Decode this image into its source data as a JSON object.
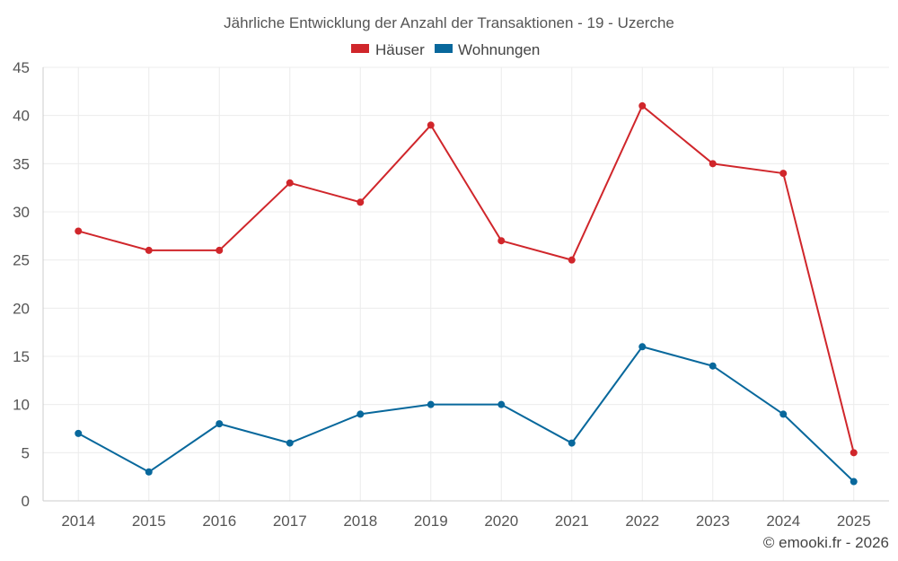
{
  "chart_data": {
    "type": "line",
    "title": "Jährliche Entwicklung der Anzahl der Transaktionen - 19 - Uzerche",
    "xlabel": "",
    "ylabel": "",
    "categories": [
      "2014",
      "2015",
      "2016",
      "2017",
      "2018",
      "2019",
      "2020",
      "2021",
      "2022",
      "2023",
      "2024",
      "2025"
    ],
    "ylim": [
      0,
      45
    ],
    "yticks": [
      0,
      5,
      10,
      15,
      20,
      25,
      30,
      35,
      40,
      45
    ],
    "grid": true,
    "legend_position": "top-center",
    "series": [
      {
        "name": "Häuser",
        "color": "#d0262b",
        "values": [
          28,
          26,
          26,
          33,
          31,
          39,
          27,
          25,
          41,
          35,
          34,
          5
        ]
      },
      {
        "name": "Wohnungen",
        "color": "#08689c",
        "values": [
          7,
          3,
          8,
          6,
          9,
          10,
          10,
          6,
          16,
          14,
          9,
          2
        ]
      }
    ]
  },
  "credit": "© emooki.fr - 2026"
}
